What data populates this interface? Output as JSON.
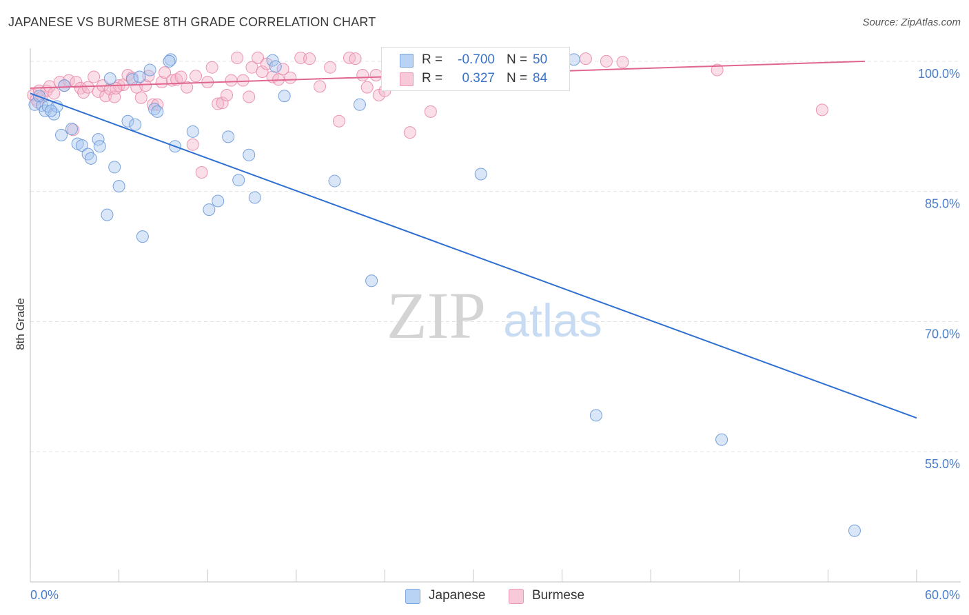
{
  "title": "JAPANESE VS BURMESE 8TH GRADE CORRELATION CHART",
  "source": "Source: ZipAtlas.com",
  "watermark": {
    "zip": "ZIP",
    "atlas": "atlas"
  },
  "colors": {
    "japanese_fill": "#a9c8f0",
    "japanese_stroke": "#6a98d8",
    "japanese_line": "#2e6fd1",
    "burmese_fill": "#f5b9cc",
    "burmese_stroke": "#e98aa8",
    "burmese_line": "#e0668f",
    "tick_label": "#4a7cc9",
    "grid": "#e2e2e2"
  },
  "legend": {
    "rows": [
      {
        "r_label": "R =",
        "r_value": "-0.700",
        "n_label": "N =",
        "n_value": "50"
      },
      {
        "r_label": "R =",
        "r_value": "0.327",
        "n_label": "N =",
        "n_value": "84"
      }
    ]
  },
  "bottom_legend": {
    "japanese": "Japanese",
    "burmese": "Burmese"
  },
  "chart_data": {
    "type": "scatter",
    "title": "JAPANESE VS BURMESE 8TH GRADE CORRELATION CHART",
    "ylabel": "8th Grade",
    "xlabel": "",
    "xlim": [
      0,
      60
    ],
    "ylim": [
      40,
      101.5
    ],
    "x_tick_labels": [
      "0.0%",
      "60.0%"
    ],
    "y_ticks": [
      100,
      85,
      70,
      55
    ],
    "y_tick_labels": [
      "100.0%",
      "85.0%",
      "70.0%",
      "55.0%"
    ],
    "grid": true,
    "legend_position": "top-center",
    "series": [
      {
        "name": "Japanese",
        "r": -0.7,
        "n": 50,
        "trend": [
          [
            0,
            96.3
          ],
          [
            60,
            58.9
          ]
        ],
        "points": [
          [
            0.3,
            95.0
          ],
          [
            0.8,
            94.9
          ],
          [
            1.0,
            94.3
          ],
          [
            1.2,
            94.8
          ],
          [
            1.6,
            93.9
          ],
          [
            1.8,
            94.8
          ],
          [
            2.1,
            91.5
          ],
          [
            2.3,
            97.2
          ],
          [
            2.8,
            92.2
          ],
          [
            3.2,
            90.5
          ],
          [
            3.5,
            90.3
          ],
          [
            3.9,
            89.3
          ],
          [
            4.1,
            88.8
          ],
          [
            4.6,
            91.0
          ],
          [
            4.7,
            90.2
          ],
          [
            5.2,
            82.3
          ],
          [
            5.4,
            98.0
          ],
          [
            5.7,
            87.8
          ],
          [
            6.0,
            85.6
          ],
          [
            6.6,
            93.1
          ],
          [
            6.9,
            97.9
          ],
          [
            7.1,
            92.7
          ],
          [
            7.6,
            79.8
          ],
          [
            8.1,
            99.0
          ],
          [
            8.4,
            94.5
          ],
          [
            8.6,
            94.2
          ],
          [
            9.5,
            100.2
          ],
          [
            9.8,
            90.2
          ],
          [
            11.0,
            91.9
          ],
          [
            12.1,
            82.9
          ],
          [
            12.7,
            83.9
          ],
          [
            13.4,
            91.3
          ],
          [
            14.1,
            86.3
          ],
          [
            14.8,
            89.2
          ],
          [
            15.2,
            84.3
          ],
          [
            16.4,
            100.1
          ],
          [
            16.6,
            99.4
          ],
          [
            17.2,
            96.0
          ],
          [
            20.6,
            86.2
          ],
          [
            22.3,
            95.0
          ],
          [
            23.1,
            74.7
          ],
          [
            30.5,
            87.0
          ],
          [
            36.8,
            100.2
          ],
          [
            38.3,
            59.2
          ],
          [
            46.8,
            56.4
          ],
          [
            55.8,
            45.9
          ],
          [
            0.6,
            96.0
          ],
          [
            1.4,
            94.3
          ],
          [
            7.4,
            98.2
          ],
          [
            9.4,
            100.0
          ]
        ]
      },
      {
        "name": "Burmese",
        "r": 0.327,
        "n": 84,
        "trend": [
          [
            0,
            96.9
          ],
          [
            56.5,
            100.0
          ]
        ],
        "points": [
          [
            0.2,
            96.1
          ],
          [
            0.4,
            95.6
          ],
          [
            0.6,
            96.6
          ],
          [
            0.8,
            95.9
          ],
          [
            1.1,
            96.6
          ],
          [
            1.3,
            97.1
          ],
          [
            1.6,
            96.3
          ],
          [
            2.0,
            97.6
          ],
          [
            2.3,
            97.2
          ],
          [
            2.6,
            97.8
          ],
          [
            2.9,
            92.1
          ],
          [
            3.1,
            97.6
          ],
          [
            3.4,
            96.9
          ],
          [
            3.6,
            96.4
          ],
          [
            3.9,
            97.0
          ],
          [
            4.3,
            98.2
          ],
          [
            4.6,
            96.5
          ],
          [
            4.9,
            97.2
          ],
          [
            5.1,
            96.0
          ],
          [
            5.4,
            96.8
          ],
          [
            5.7,
            95.9
          ],
          [
            6.0,
            97.2
          ],
          [
            6.3,
            97.3
          ],
          [
            6.6,
            98.4
          ],
          [
            6.9,
            98.1
          ],
          [
            7.2,
            97.0
          ],
          [
            7.5,
            95.8
          ],
          [
            7.8,
            97.2
          ],
          [
            8.0,
            98.3
          ],
          [
            8.3,
            95.0
          ],
          [
            8.6,
            95.0
          ],
          [
            8.9,
            97.6
          ],
          [
            9.1,
            98.7
          ],
          [
            9.6,
            97.8
          ],
          [
            9.9,
            97.9
          ],
          [
            10.2,
            98.2
          ],
          [
            10.6,
            97.0
          ],
          [
            11.0,
            90.4
          ],
          [
            11.2,
            98.3
          ],
          [
            11.6,
            87.2
          ],
          [
            12.0,
            97.6
          ],
          [
            12.3,
            99.3
          ],
          [
            12.7,
            95.1
          ],
          [
            13.0,
            95.2
          ],
          [
            13.3,
            96.1
          ],
          [
            13.6,
            97.8
          ],
          [
            14.0,
            100.4
          ],
          [
            14.4,
            97.8
          ],
          [
            14.8,
            95.9
          ],
          [
            15.0,
            99.3
          ],
          [
            15.4,
            100.4
          ],
          [
            15.7,
            98.8
          ],
          [
            16.0,
            99.7
          ],
          [
            16.4,
            98.2
          ],
          [
            16.8,
            97.9
          ],
          [
            17.1,
            99.1
          ],
          [
            17.6,
            98.1
          ],
          [
            18.3,
            100.4
          ],
          [
            18.9,
            100.3
          ],
          [
            19.6,
            97.1
          ],
          [
            20.3,
            99.3
          ],
          [
            20.9,
            93.1
          ],
          [
            21.6,
            100.4
          ],
          [
            22.0,
            100.3
          ],
          [
            22.5,
            98.4
          ],
          [
            22.8,
            97.0
          ],
          [
            23.4,
            98.4
          ],
          [
            23.6,
            96.1
          ],
          [
            24.0,
            96.6
          ],
          [
            25.0,
            100.4
          ],
          [
            25.7,
            91.8
          ],
          [
            26.2,
            100.3
          ],
          [
            27.1,
            94.2
          ],
          [
            28.7,
            100.3
          ],
          [
            31.0,
            99.8
          ],
          [
            32.5,
            99.5
          ],
          [
            33.8,
            99.6
          ],
          [
            37.6,
            100.3
          ],
          [
            39.0,
            100.0
          ],
          [
            40.1,
            99.9
          ],
          [
            46.5,
            99.0
          ],
          [
            53.6,
            94.4
          ],
          [
            0.5,
            95.3
          ],
          [
            5.8,
            96.9
          ]
        ]
      }
    ]
  }
}
